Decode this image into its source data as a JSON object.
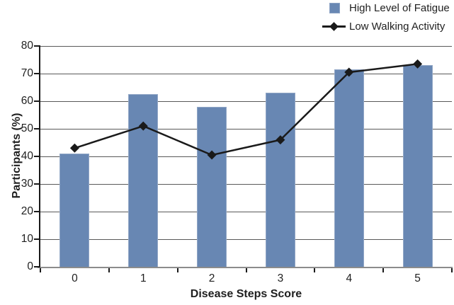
{
  "chart_data": {
    "type": "bar+line",
    "categories": [
      "0",
      "1",
      "2",
      "3",
      "4",
      "5"
    ],
    "series": [
      {
        "name": "High Level of Fatigue",
        "type": "bar",
        "color": "#6887b3",
        "values": [
          41,
          62.5,
          58,
          63,
          71.5,
          73
        ]
      },
      {
        "name": "Low Walking Activity",
        "type": "line",
        "marker": "diamond",
        "color": "#1a1a1a",
        "values": [
          43,
          51,
          40.5,
          46,
          70.5,
          73.5
        ]
      }
    ],
    "xlabel": "Disease Steps Score",
    "ylabel": "Participants (%)",
    "ylim": [
      0,
      80
    ],
    "yticks": [
      0,
      10,
      20,
      30,
      40,
      50,
      60,
      70,
      80
    ],
    "grid": true,
    "legend_position": "top-right"
  },
  "legend": {
    "items": [
      {
        "label": "High Level of Fatigue",
        "swatch": "square",
        "color": "#6887b3"
      },
      {
        "label": "Low Walking Activity",
        "swatch": "diamond-line",
        "color": "#1a1a1a"
      }
    ]
  },
  "colors": {
    "bar": "#6887b3",
    "line": "#1a1a1a",
    "gridline": "#595959",
    "axis_baseline": "#8c8c8c",
    "text": "#1f1f1f"
  }
}
